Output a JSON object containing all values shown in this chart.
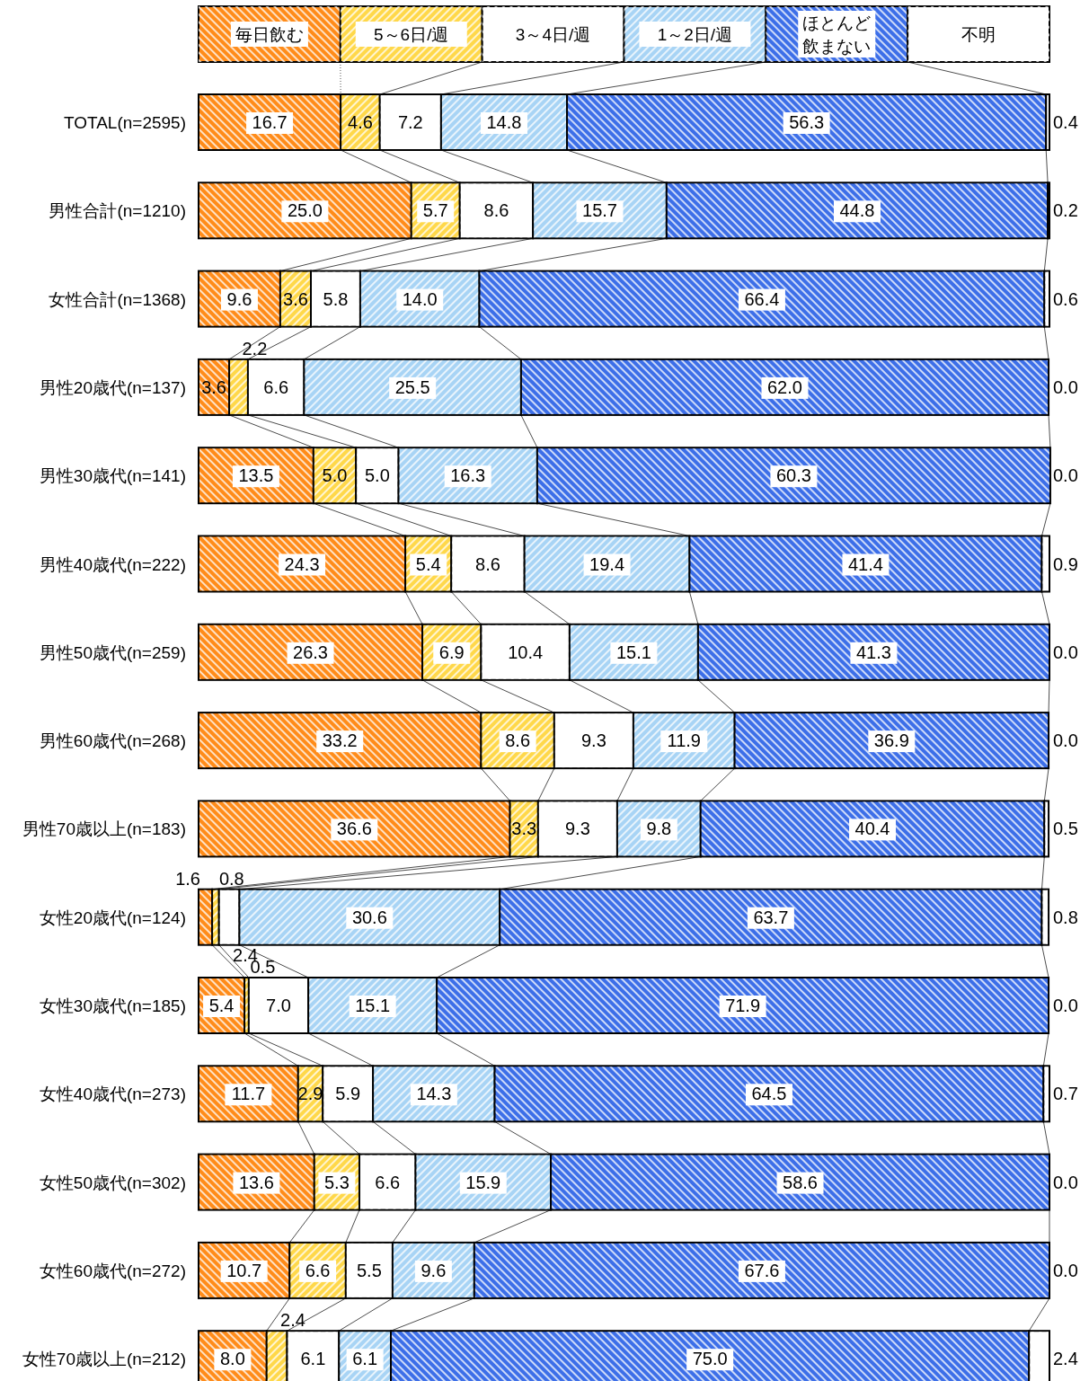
{
  "chart_data": {
    "type": "bar",
    "orientation": "horizontal",
    "stacked": true,
    "legend": "top",
    "xlim": [
      0,
      100
    ],
    "categories": [
      "TOTAL(n=2595)",
      "男性合計(n=1210)",
      "女性合計(n=1368)",
      "男性20歳代(n=137)",
      "男性30歳代(n=141)",
      "男性40歳代(n=222)",
      "男性50歳代(n=259)",
      "男性60歳代(n=268)",
      "男性70歳以上(n=183)",
      "女性20歳代(n=124)",
      "女性30歳代(n=185)",
      "女性40歳代(n=273)",
      "女性50歳代(n=302)",
      "女性60歳代(n=272)",
      "女性70歳以上(n=212)"
    ],
    "series": [
      {
        "name": "毎日飲む",
        "color": "#ff8c1a",
        "values": [
          16.7,
          25.0,
          9.6,
          3.6,
          13.5,
          24.3,
          26.3,
          33.2,
          36.6,
          1.6,
          5.4,
          11.7,
          13.6,
          10.7,
          8.0
        ],
        "value_labels": [
          "16.7",
          "25.0",
          "9.6",
          "3.6",
          "13.5",
          "24.3",
          "26.3",
          "33.2",
          "36.6",
          "1.6",
          "5.4",
          "11.7",
          "13.6",
          "10.7",
          "8.0"
        ]
      },
      {
        "name": "5～6日/週",
        "color": "#ffd84a",
        "values": [
          4.6,
          5.7,
          3.6,
          2.2,
          5.0,
          5.4,
          6.9,
          8.6,
          3.3,
          0.8,
          0.5,
          2.9,
          5.3,
          6.6,
          2.4
        ],
        "value_labels": [
          "4.6",
          "5.7",
          "3.6",
          "2.2",
          "5.0",
          "5.4",
          "6.9",
          "8.6",
          "3.3",
          "0.8",
          "0.5",
          "2.9",
          "5.3",
          "6.6",
          "2.4"
        ]
      },
      {
        "name": "3～4日/週",
        "color": "#ffffff",
        "values": [
          7.2,
          8.6,
          5.8,
          6.6,
          5.0,
          8.6,
          10.4,
          9.3,
          9.3,
          2.4,
          7.0,
          5.9,
          6.6,
          5.5,
          6.1
        ],
        "value_labels": [
          "7.2",
          "8.6",
          "5.8",
          "6.6",
          "5.0",
          "8.6",
          "10.4",
          "9.3",
          "9.3",
          "2.4",
          "7.0",
          "5.9",
          "6.6",
          "5.5",
          "6.1"
        ]
      },
      {
        "name": "1～2日/週",
        "color": "#a8d4f5",
        "values": [
          14.8,
          15.7,
          14.0,
          25.5,
          16.3,
          19.4,
          15.1,
          11.9,
          9.8,
          30.6,
          15.1,
          14.3,
          15.9,
          9.6,
          6.1
        ],
        "value_labels": [
          "14.8",
          "15.7",
          "14.0",
          "25.5",
          "16.3",
          "19.4",
          "15.1",
          "11.9",
          "9.8",
          "30.6",
          "15.1",
          "14.3",
          "15.9",
          "9.6",
          "6.1"
        ]
      },
      {
        "name": "ほとんど飲まない",
        "color": "#3d6fe8",
        "values": [
          56.3,
          44.8,
          66.4,
          62.0,
          60.3,
          41.4,
          41.3,
          36.9,
          40.4,
          63.7,
          71.9,
          64.5,
          58.6,
          67.6,
          75.0
        ],
        "value_labels": [
          "56.3",
          "44.8",
          "66.4",
          "62.0",
          "60.3",
          "41.4",
          "41.3",
          "36.9",
          "40.4",
          "63.7",
          "71.9",
          "64.5",
          "58.6",
          "67.6",
          "75.0"
        ]
      },
      {
        "name": "不明",
        "color": "#ffffff",
        "values": [
          0.4,
          0.2,
          0.6,
          0.0,
          0.0,
          0.9,
          0.0,
          0.0,
          0.5,
          0.8,
          0.0,
          0.7,
          0.0,
          0.0,
          2.4
        ],
        "value_labels": [
          "0.4",
          "0.2",
          "0.6",
          "0.0",
          "0.0",
          "0.9",
          "0.0",
          "0.0",
          "0.5",
          "0.8",
          "0.0",
          "0.7",
          "0.0",
          "0.0",
          "2.4"
        ]
      }
    ]
  }
}
